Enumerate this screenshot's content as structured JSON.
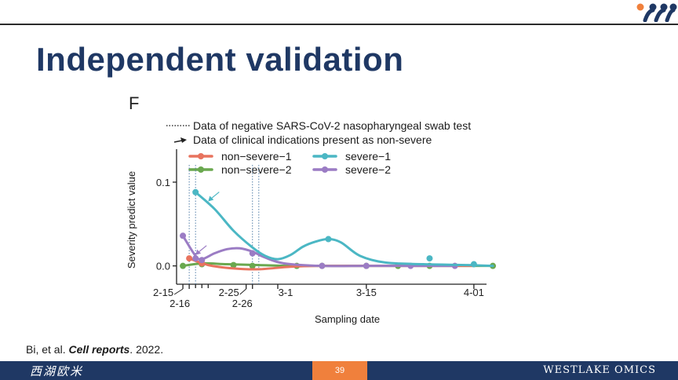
{
  "slide": {
    "title": "Independent validation",
    "panel_letter": "F"
  },
  "legend": {
    "dotted_label": "Data of negative SARS-CoV-2 nasopharyngeal swab test",
    "arrow_label": "Data of clinical indications present as non-severe"
  },
  "citation": {
    "prefix": "Bi, et al.",
    "journal": "Cell reports",
    "year": ". 2022."
  },
  "footer": {
    "left_text": "西湖欧米",
    "page_number": "39",
    "right_text": "WESTLAKE OMICS"
  },
  "colors": {
    "non_severe_1": "#e8735e",
    "non_severe_2": "#6aa84f",
    "severe_1": "#4bb7c4",
    "severe_2": "#9b7cc4",
    "title": "#1f3864",
    "footer_bg": "#1f3864",
    "page_box": "#f0803c"
  },
  "chart_data": {
    "type": "line",
    "xlabel": "Sampling date",
    "ylabel": "Severity predict value",
    "xlim": [
      "2-14",
      "4-03"
    ],
    "ylim": [
      -0.02,
      0.13
    ],
    "y_ticks": [
      0.0,
      0.1
    ],
    "y_tick_labels": [
      "0.0",
      "0.1"
    ],
    "x_ticks": [
      {
        "date": "2-15",
        "label": "2-15"
      },
      {
        "date": "2-16",
        "label": "2-16"
      },
      {
        "date": "2-25",
        "label": "2-25"
      },
      {
        "date": "2-26",
        "label": "2-26"
      },
      {
        "date": "3-01",
        "label": "3-1"
      },
      {
        "date": "3-15",
        "label": "3-15"
      },
      {
        "date": "4-01",
        "label": "4-01"
      }
    ],
    "minor_x_ticks": [
      "2-17",
      "2-18",
      "2-19"
    ],
    "dotted_lines": [
      "2-16",
      "2-17",
      "2-26",
      "2-27"
    ],
    "arrows": [
      {
        "series": "severe-1",
        "date": "2-19",
        "value": 0.077
      },
      {
        "series": "severe-2",
        "date": "2-17",
        "value": 0.013
      }
    ],
    "series": [
      {
        "name": "non-severe-1",
        "color": "#e8735e",
        "points": [
          [
            "2-16",
            0.009
          ],
          [
            "2-19",
            0.001
          ],
          [
            "2-23",
            -0.003
          ],
          [
            "2-27",
            -0.004
          ],
          [
            "3-03",
            -0.001
          ],
          [
            "3-08",
            0.0
          ],
          [
            "3-15",
            0.0
          ],
          [
            "3-22",
            0.0
          ],
          [
            "4-01",
            0.0
          ]
        ],
        "markers": [
          [
            "2-16",
            0.009
          ],
          [
            "2-18",
            0.003
          ]
        ]
      },
      {
        "name": "non-severe-2",
        "color": "#6aa84f",
        "points": [
          [
            "2-15",
            0.0
          ],
          [
            "2-18",
            0.003
          ],
          [
            "2-22",
            0.002
          ],
          [
            "2-27",
            0.001
          ],
          [
            "3-03",
            0.0
          ],
          [
            "3-10",
            0.0
          ],
          [
            "3-20",
            0.0
          ],
          [
            "4-04",
            0.0
          ]
        ],
        "markers": [
          [
            "2-15",
            0.0
          ],
          [
            "2-18",
            0.002
          ],
          [
            "2-23",
            0.001
          ],
          [
            "2-26",
            0.0
          ],
          [
            "3-04",
            0.0
          ],
          [
            "3-08",
            0.0
          ],
          [
            "3-15",
            0.0
          ],
          [
            "3-20",
            0.0
          ],
          [
            "3-25",
            0.0
          ],
          [
            "4-04",
            0.0
          ]
        ]
      },
      {
        "name": "severe-1",
        "color": "#4bb7c4",
        "points": [
          [
            "2-17",
            0.088
          ],
          [
            "2-20",
            0.068
          ],
          [
            "2-23",
            0.042
          ],
          [
            "2-26",
            0.022
          ],
          [
            "2-28",
            0.012
          ],
          [
            "3-01",
            0.008
          ],
          [
            "3-03",
            0.013
          ],
          [
            "3-05",
            0.023
          ],
          [
            "3-07",
            0.029
          ],
          [
            "3-09",
            0.032
          ],
          [
            "3-11",
            0.028
          ],
          [
            "3-14",
            0.012
          ],
          [
            "3-18",
            0.004
          ],
          [
            "3-24",
            0.002
          ],
          [
            "3-31",
            0.001
          ],
          [
            "4-04",
            0.0
          ]
        ],
        "markers": [
          [
            "2-17",
            0.088
          ],
          [
            "3-09",
            0.032
          ],
          [
            "3-25",
            0.009
          ],
          [
            "4-01",
            0.002
          ]
        ]
      },
      {
        "name": "severe-2",
        "color": "#9b7cc4",
        "points": [
          [
            "2-15",
            0.036
          ],
          [
            "2-17",
            0.012
          ],
          [
            "2-18",
            0.008
          ],
          [
            "2-20",
            0.015
          ],
          [
            "2-22",
            0.02
          ],
          [
            "2-24",
            0.021
          ],
          [
            "2-26",
            0.017
          ],
          [
            "2-28",
            0.01
          ],
          [
            "3-02",
            0.003
          ],
          [
            "3-08",
            0.0
          ],
          [
            "3-15",
            0.0
          ],
          [
            "3-22",
            0.0
          ],
          [
            "3-29",
            0.0
          ]
        ],
        "markers": [
          [
            "2-15",
            0.036
          ],
          [
            "2-17",
            0.009
          ],
          [
            "2-18",
            0.007
          ],
          [
            "2-26",
            0.015
          ],
          [
            "3-08",
            0.0
          ],
          [
            "3-15",
            0.0
          ],
          [
            "3-22",
            0.0
          ],
          [
            "3-29",
            0.0
          ]
        ]
      }
    ]
  }
}
